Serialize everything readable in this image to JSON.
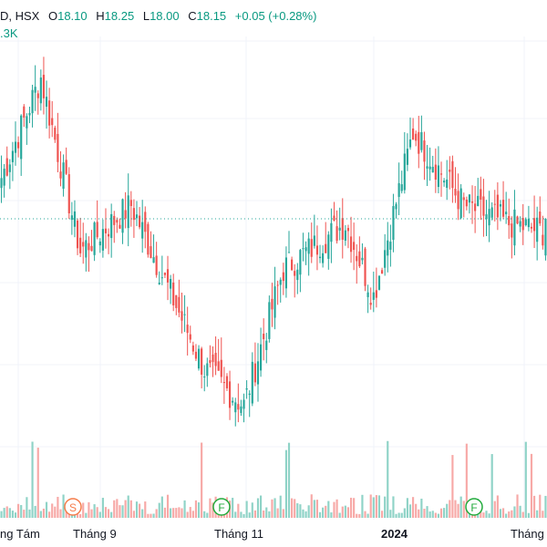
{
  "header": {
    "symbol_fragment": "D, HSX",
    "open_label": "O",
    "open_value": "18.10",
    "high_label": "H",
    "high_value": "18.25",
    "low_label": "L",
    "low_value": "18.00",
    "close_label": "C",
    "close_value": "18.15",
    "change": "+0.05 (+0.28%)",
    "volume_fragment": ".3K"
  },
  "x_axis": {
    "labels": [
      "ng Tám",
      "Tháng 9",
      "Tháng 11",
      "2024",
      "Tháng"
    ]
  },
  "events": [
    {
      "letter": "S",
      "color": "#f57c4a"
    },
    {
      "letter": "F",
      "color": "#22ab3c"
    },
    {
      "letter": "F",
      "color": "#22ab3c"
    }
  ],
  "colors": {
    "up": "#26a69a",
    "down": "#ef5350",
    "up_volume": "#8fd3c7",
    "down_volume": "#f7a9a7",
    "grid": "#f0f3fa",
    "last_price_line": "#26a69a"
  },
  "chart_data": {
    "type": "candlestick",
    "series": [
      {
        "name": "",
        "segments": [
          {
            "from": 18.6,
            "to": 19.7,
            "count": 14
          },
          {
            "from": 19.7,
            "to": 17.8,
            "count": 14
          },
          {
            "from": 17.8,
            "to": 18.3,
            "count": 18
          },
          {
            "from": 18.3,
            "to": 16.5,
            "count": 26
          },
          {
            "from": 16.5,
            "to": 16.1,
            "count": 14
          },
          {
            "from": 16.1,
            "to": 17.6,
            "count": 14
          },
          {
            "from": 17.6,
            "to": 18.1,
            "count": 22
          },
          {
            "from": 18.1,
            "to": 17.3,
            "count": 10
          },
          {
            "from": 17.3,
            "to": 19.1,
            "count": 14
          },
          {
            "from": 19.1,
            "to": 18.3,
            "count": 18
          },
          {
            "from": 18.3,
            "to": 18.1,
            "count": 16
          },
          {
            "from": 18.1,
            "to": 18.0,
            "count": 14
          }
        ]
      }
    ],
    "ylim": [
      15.1,
      20.0
    ],
    "last_price": 18.15,
    "grid": true
  }
}
